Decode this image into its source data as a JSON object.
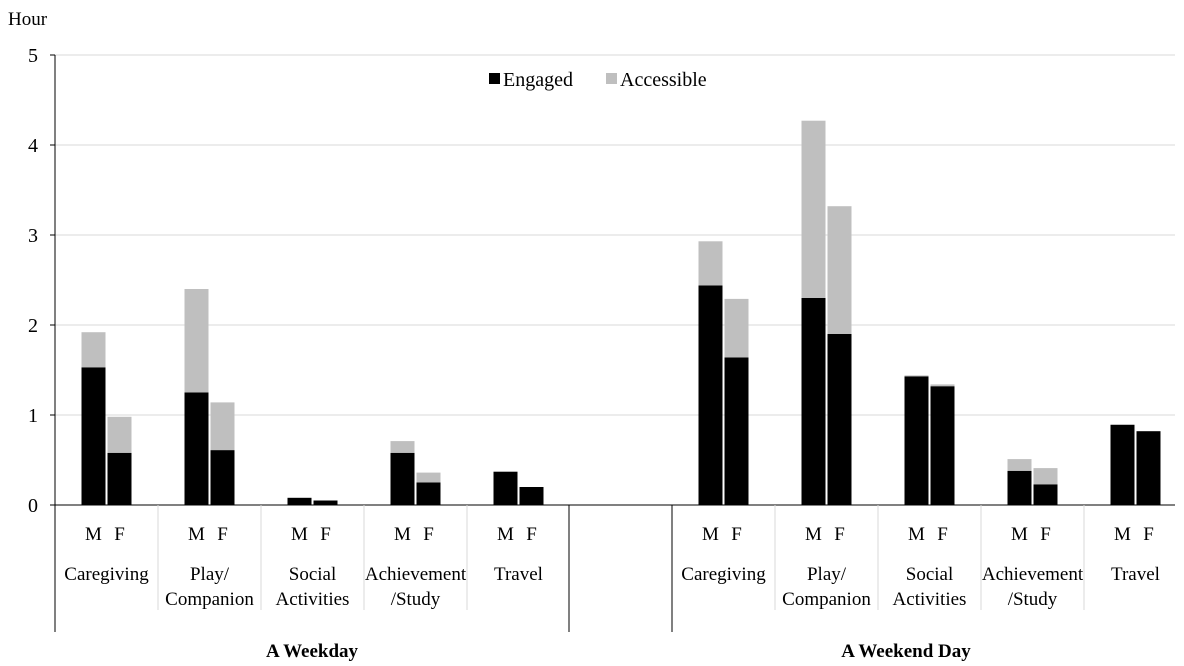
{
  "chart_data": {
    "type": "bar",
    "stacked": true,
    "ylabel": "Hour",
    "ylim": [
      0,
      5
    ],
    "yticks": [
      0,
      1,
      2,
      3,
      4,
      5
    ],
    "grid": true,
    "legend": {
      "position": "top-center",
      "items": [
        {
          "name": "Engaged",
          "color": "#000000"
        },
        {
          "name": "Accessible",
          "color": "#bfbfbf"
        }
      ]
    },
    "groups": [
      {
        "label": "A Weekday",
        "categories": [
          {
            "label_lines": [
              "Caregiving"
            ],
            "bars": [
              {
                "sex": "M",
                "engaged": 1.53,
                "accessible": 0.39
              },
              {
                "sex": "F",
                "engaged": 0.58,
                "accessible": 0.4
              }
            ]
          },
          {
            "label_lines": [
              "Play/",
              "Companion"
            ],
            "bars": [
              {
                "sex": "M",
                "engaged": 1.25,
                "accessible": 1.15
              },
              {
                "sex": "F",
                "engaged": 0.61,
                "accessible": 0.53
              }
            ]
          },
          {
            "label_lines": [
              "Social",
              "Activities"
            ],
            "bars": [
              {
                "sex": "M",
                "engaged": 0.08,
                "accessible": 0.0
              },
              {
                "sex": "F",
                "engaged": 0.05,
                "accessible": 0.0
              }
            ]
          },
          {
            "label_lines": [
              "Achievement",
              "/Study"
            ],
            "bars": [
              {
                "sex": "M",
                "engaged": 0.58,
                "accessible": 0.13
              },
              {
                "sex": "F",
                "engaged": 0.25,
                "accessible": 0.11
              }
            ]
          },
          {
            "label_lines": [
              "Travel"
            ],
            "bars": [
              {
                "sex": "M",
                "engaged": 0.37,
                "accessible": 0.0
              },
              {
                "sex": "F",
                "engaged": 0.2,
                "accessible": 0.0
              }
            ]
          }
        ]
      },
      {
        "label": "A Weekend Day",
        "categories": [
          {
            "label_lines": [
              "Caregiving"
            ],
            "bars": [
              {
                "sex": "M",
                "engaged": 2.44,
                "accessible": 0.49
              },
              {
                "sex": "F",
                "engaged": 1.64,
                "accessible": 0.65
              }
            ]
          },
          {
            "label_lines": [
              "Play/",
              "Companion"
            ],
            "bars": [
              {
                "sex": "M",
                "engaged": 2.3,
                "accessible": 1.97
              },
              {
                "sex": "F",
                "engaged": 1.9,
                "accessible": 1.42
              }
            ]
          },
          {
            "label_lines": [
              "Social",
              "Activities"
            ],
            "bars": [
              {
                "sex": "M",
                "engaged": 1.43,
                "accessible": 0.01
              },
              {
                "sex": "F",
                "engaged": 1.32,
                "accessible": 0.02
              }
            ]
          },
          {
            "label_lines": [
              "Achievement",
              "/Study"
            ],
            "bars": [
              {
                "sex": "M",
                "engaged": 0.38,
                "accessible": 0.13
              },
              {
                "sex": "F",
                "engaged": 0.23,
                "accessible": 0.18
              }
            ]
          },
          {
            "label_lines": [
              "Travel"
            ],
            "bars": [
              {
                "sex": "M",
                "engaged": 0.89,
                "accessible": 0.01
              },
              {
                "sex": "F",
                "engaged": 0.82,
                "accessible": 0.0
              }
            ]
          }
        ]
      }
    ]
  }
}
